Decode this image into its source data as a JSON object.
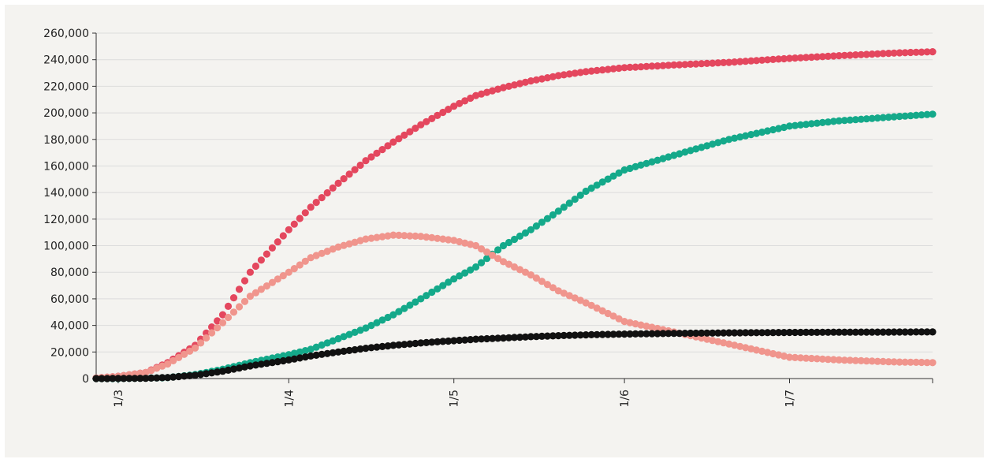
{
  "chart_data": {
    "type": "scatter",
    "title": "",
    "xlabel": "",
    "ylabel": "",
    "x_start": "2020-02-26",
    "x_end": "2020-07-27",
    "ylim": [
      0,
      260000
    ],
    "yticks": [
      0,
      20000,
      40000,
      60000,
      80000,
      100000,
      120000,
      140000,
      160000,
      180000,
      200000,
      220000,
      240000,
      260000
    ],
    "ytick_labels": [
      "0",
      "20,000",
      "40,000",
      "60,000",
      "80,000",
      "100,000",
      "120,000",
      "140,000",
      "160,000",
      "180,000",
      "200,000",
      "220,000",
      "240,000",
      "260,000"
    ],
    "xticks": [
      "2020-03-01",
      "2020-04-01",
      "2020-05-01",
      "2020-06-01",
      "2020-07-01"
    ],
    "xtick_labels": [
      "1/3",
      "1/4",
      "1/5",
      "1/6",
      "1/7"
    ],
    "grid": true,
    "legend": "none",
    "series": [
      {
        "color": "#e4475e",
        "points": [
          [
            "2020-02-26",
            400
          ],
          [
            "2020-03-01",
            1700
          ],
          [
            "2020-03-06",
            4600
          ],
          [
            "2020-03-10",
            12000
          ],
          [
            "2020-03-15",
            25000
          ],
          [
            "2020-03-20",
            48000
          ],
          [
            "2020-03-25",
            80000
          ],
          [
            "2020-04-01",
            112000
          ],
          [
            "2020-04-05",
            129000
          ],
          [
            "2020-04-10",
            147000
          ],
          [
            "2020-04-15",
            164000
          ],
          [
            "2020-04-20",
            178000
          ],
          [
            "2020-04-25",
            191000
          ],
          [
            "2020-05-01",
            205000
          ],
          [
            "2020-05-05",
            213000
          ],
          [
            "2020-05-10",
            219000
          ],
          [
            "2020-05-15",
            224000
          ],
          [
            "2020-05-20",
            228000
          ],
          [
            "2020-05-25",
            231000
          ],
          [
            "2020-06-01",
            234000
          ],
          [
            "2020-06-10",
            236000
          ],
          [
            "2020-06-20",
            238000
          ],
          [
            "2020-07-01",
            241000
          ],
          [
            "2020-07-10",
            243000
          ],
          [
            "2020-07-20",
            245000
          ],
          [
            "2020-07-27",
            246000
          ]
        ]
      },
      {
        "color": "#14a98a",
        "points": [
          [
            "2020-02-26",
            0
          ],
          [
            "2020-03-01",
            0
          ],
          [
            "2020-03-06",
            300
          ],
          [
            "2020-03-10",
            700
          ],
          [
            "2020-03-15",
            3000
          ],
          [
            "2020-03-20",
            7000
          ],
          [
            "2020-03-25",
            12000
          ],
          [
            "2020-04-01",
            18000
          ],
          [
            "2020-04-05",
            22000
          ],
          [
            "2020-04-10",
            30000
          ],
          [
            "2020-04-15",
            38000
          ],
          [
            "2020-04-20",
            48000
          ],
          [
            "2020-04-25",
            60000
          ],
          [
            "2020-05-01",
            75000
          ],
          [
            "2020-05-05",
            84000
          ],
          [
            "2020-05-10",
            100000
          ],
          [
            "2020-05-15",
            112000
          ],
          [
            "2020-05-20",
            126000
          ],
          [
            "2020-05-25",
            141000
          ],
          [
            "2020-06-01",
            157000
          ],
          [
            "2020-06-10",
            168000
          ],
          [
            "2020-06-20",
            180000
          ],
          [
            "2020-07-01",
            190000
          ],
          [
            "2020-07-10",
            194000
          ],
          [
            "2020-07-20",
            197000
          ],
          [
            "2020-07-27",
            199000
          ]
        ]
      },
      {
        "color": "#f0958d",
        "points": [
          [
            "2020-02-26",
            400
          ],
          [
            "2020-03-01",
            1600
          ],
          [
            "2020-03-06",
            4500
          ],
          [
            "2020-03-10",
            11000
          ],
          [
            "2020-03-15",
            23000
          ],
          [
            "2020-03-20",
            42000
          ],
          [
            "2020-03-25",
            62000
          ],
          [
            "2020-04-01",
            80000
          ],
          [
            "2020-04-05",
            91000
          ],
          [
            "2020-04-10",
            99000
          ],
          [
            "2020-04-15",
            105000
          ],
          [
            "2020-04-20",
            108000
          ],
          [
            "2020-04-25",
            107000
          ],
          [
            "2020-05-01",
            104000
          ],
          [
            "2020-05-05",
            100000
          ],
          [
            "2020-05-10",
            88000
          ],
          [
            "2020-05-15",
            78000
          ],
          [
            "2020-05-20",
            66000
          ],
          [
            "2020-05-25",
            57000
          ],
          [
            "2020-06-01",
            43000
          ],
          [
            "2020-06-10",
            35000
          ],
          [
            "2020-06-20",
            26000
          ],
          [
            "2020-07-01",
            16000
          ],
          [
            "2020-07-10",
            14000
          ],
          [
            "2020-07-20",
            12500
          ],
          [
            "2020-07-27",
            12000
          ]
        ]
      },
      {
        "color": "#111111",
        "points": [
          [
            "2020-02-26",
            0
          ],
          [
            "2020-03-01",
            50
          ],
          [
            "2020-03-06",
            200
          ],
          [
            "2020-03-10",
            800
          ],
          [
            "2020-03-15",
            2500
          ],
          [
            "2020-03-20",
            5500
          ],
          [
            "2020-03-25",
            9500
          ],
          [
            "2020-04-01",
            14000
          ],
          [
            "2020-04-05",
            17000
          ],
          [
            "2020-04-10",
            20000
          ],
          [
            "2020-04-15",
            22800
          ],
          [
            "2020-04-20",
            25000
          ],
          [
            "2020-04-25",
            26800
          ],
          [
            "2020-05-01",
            28500
          ],
          [
            "2020-05-05",
            29600
          ],
          [
            "2020-05-10",
            30500
          ],
          [
            "2020-05-15",
            31500
          ],
          [
            "2020-05-20",
            32300
          ],
          [
            "2020-05-25",
            32900
          ],
          [
            "2020-06-01",
            33500
          ],
          [
            "2020-06-10",
            34000
          ],
          [
            "2020-06-20",
            34400
          ],
          [
            "2020-07-01",
            34700
          ],
          [
            "2020-07-10",
            34900
          ],
          [
            "2020-07-20",
            35000
          ],
          [
            "2020-07-27",
            35100
          ]
        ]
      }
    ]
  }
}
